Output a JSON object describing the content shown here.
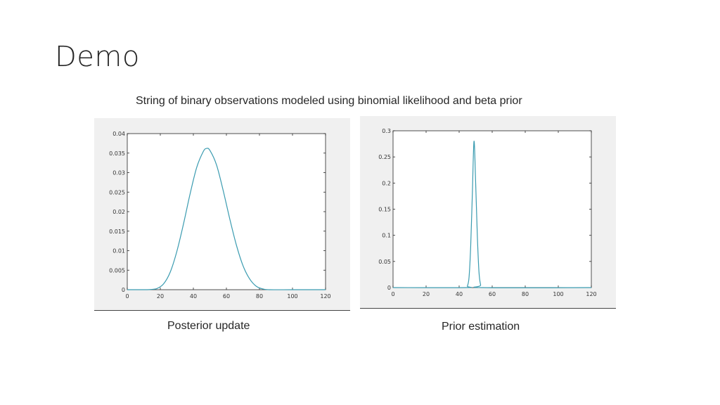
{
  "slide": {
    "title": "Demo",
    "subtitle": "String of binary observations modeled using binomial likelihood and beta prior"
  },
  "captions": {
    "left": "Posterior update",
    "right": "Prior estimation"
  },
  "chart_data": [
    {
      "type": "line",
      "title": "",
      "xlabel": "",
      "ylabel": "",
      "xlim": [
        0,
        120
      ],
      "ylim": [
        0,
        0.04
      ],
      "x_ticks": [
        0,
        20,
        40,
        60,
        80,
        100,
        120
      ],
      "y_ticks": [
        "0",
        "0.005",
        "0.01",
        "0.015",
        "0.02",
        "0.025",
        "0.03",
        "0.035",
        "0.04"
      ],
      "grid": false,
      "line_color": "#3a9bb0",
      "series": [
        {
          "x": [
            0,
            10,
            14,
            18,
            22,
            26,
            30,
            34,
            38,
            42,
            46,
            48,
            50,
            54,
            58,
            62,
            66,
            70,
            74,
            78,
            82,
            86,
            100,
            120
          ],
          "values": [
            0,
            0,
            5e-05,
            0.0003,
            0.0015,
            0.0045,
            0.0098,
            0.0168,
            0.0245,
            0.0313,
            0.0354,
            0.0362,
            0.0357,
            0.032,
            0.0255,
            0.0182,
            0.0115,
            0.0062,
            0.0028,
            0.0009,
            0.0002,
            0,
            0,
            0
          ]
        }
      ]
    },
    {
      "type": "line",
      "title": "",
      "xlabel": "",
      "ylabel": "",
      "xlim": [
        0,
        120
      ],
      "ylim": [
        0,
        0.3
      ],
      "x_ticks": [
        0,
        20,
        40,
        60,
        80,
        100,
        120
      ],
      "y_ticks": [
        "0",
        "0.05",
        "0.1",
        "0.15",
        "0.2",
        "0.25",
        "0.3"
      ],
      "grid": false,
      "line_color": "#3a9bb0",
      "series": [
        {
          "x": [
            0,
            44,
            45,
            46,
            47,
            48,
            49,
            50,
            51,
            52,
            53,
            54,
            120
          ],
          "values": [
            0,
            0,
            0.003,
            0.02,
            0.08,
            0.18,
            0.28,
            0.2,
            0.1,
            0.03,
            0.005,
            0,
            0
          ]
        }
      ]
    }
  ]
}
